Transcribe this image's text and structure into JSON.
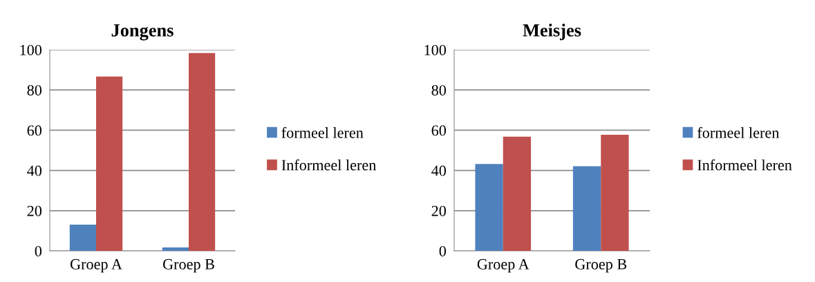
{
  "chart_data": [
    {
      "type": "bar",
      "title": "Jongens",
      "categories": [
        "Groep A",
        "Groep B"
      ],
      "series": [
        {
          "name": "formeel leren",
          "color": "#4f81bd",
          "values": [
            13.1,
            1.7
          ]
        },
        {
          "name": "Informeel leren",
          "color": "#c0504d",
          "values": [
            86.7,
            98.4
          ]
        }
      ],
      "ylim": [
        0,
        100
      ],
      "yticks": [
        0,
        20,
        40,
        60,
        80,
        100
      ],
      "grid": "y",
      "legend": "right"
    },
    {
      "type": "bar",
      "title": "Meisjes",
      "categories": [
        "Groep A",
        "Groep B"
      ],
      "series": [
        {
          "name": "formeel leren",
          "color": "#4f81bd",
          "values": [
            43.2,
            42.1
          ]
        },
        {
          "name": "Informeel leren",
          "color": "#c0504d",
          "values": [
            56.8,
            57.7
          ]
        }
      ],
      "ylim": [
        0,
        100
      ],
      "yticks": [
        0,
        20,
        40,
        60,
        80,
        100
      ],
      "grid": "y",
      "legend": "right"
    }
  ]
}
